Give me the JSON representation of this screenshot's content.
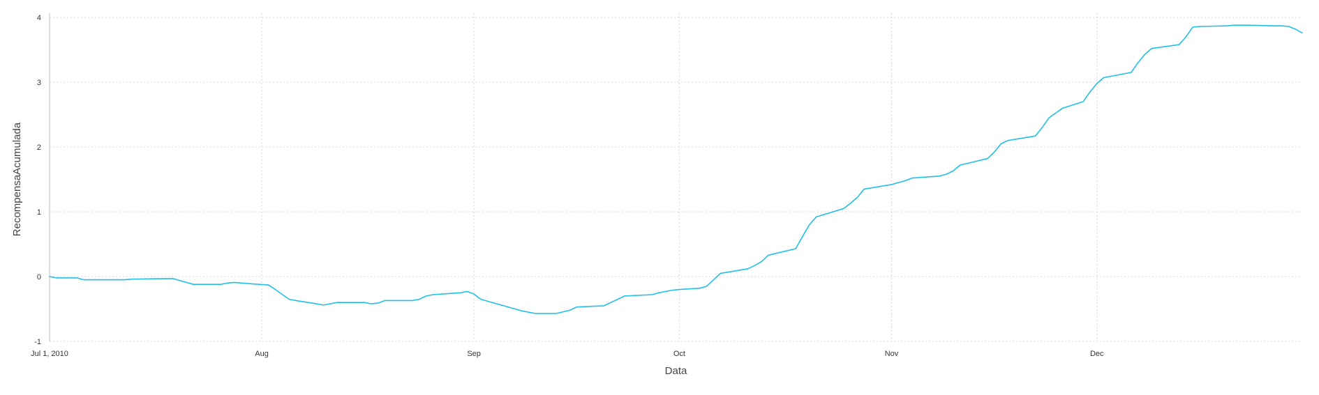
{
  "chart_data": {
    "type": "line",
    "xlabel": "Data",
    "ylabel": "RecompensaAcumulada",
    "ylim": [
      -1,
      4
    ],
    "xlim": [
      "2010-07-01",
      "2010-12-31"
    ],
    "grid": true,
    "color": "#1fbfe8",
    "yticks": [
      {
        "value": 4,
        "label": "4"
      },
      {
        "value": 3,
        "label": "3"
      },
      {
        "value": 2,
        "label": "2"
      },
      {
        "value": 1,
        "label": "1"
      },
      {
        "value": 0,
        "label": "0"
      },
      {
        "value": -1,
        "label": "-1"
      }
    ],
    "xticks": [
      {
        "value": "2010-07-01",
        "label": "Jul 1, 2010"
      },
      {
        "value": "2010-08-01",
        "label": "Aug"
      },
      {
        "value": "2010-09-01",
        "label": "Sep"
      },
      {
        "value": "2010-10-01",
        "label": "Oct"
      },
      {
        "value": "2010-11-01",
        "label": "Nov"
      },
      {
        "value": "2010-12-01",
        "label": "Dec"
      }
    ],
    "x": [
      "2010-07-01",
      "2010-07-02",
      "2010-07-05",
      "2010-07-06",
      "2010-07-12",
      "2010-07-13",
      "2010-07-19",
      "2010-07-20",
      "2010-07-22",
      "2010-07-23",
      "2010-07-26",
      "2010-07-27",
      "2010-07-28",
      "2010-07-29",
      "2010-08-02",
      "2010-08-03",
      "2010-08-05",
      "2010-08-06",
      "2010-08-09",
      "2010-08-10",
      "2010-08-11",
      "2010-08-12",
      "2010-08-16",
      "2010-08-17",
      "2010-08-18",
      "2010-08-19",
      "2010-08-23",
      "2010-08-24",
      "2010-08-25",
      "2010-08-26",
      "2010-08-30",
      "2010-08-31",
      "2010-09-01",
      "2010-09-02",
      "2010-09-07",
      "2010-09-08",
      "2010-09-10",
      "2010-09-13",
      "2010-09-15",
      "2010-09-16",
      "2010-09-20",
      "2010-09-21",
      "2010-09-22",
      "2010-09-23",
      "2010-09-27",
      "2010-09-28",
      "2010-09-29",
      "2010-09-30",
      "2010-10-01",
      "2010-10-04",
      "2010-10-05",
      "2010-10-06",
      "2010-10-07",
      "2010-10-11",
      "2010-10-12",
      "2010-10-13",
      "2010-10-14",
      "2010-10-18",
      "2010-10-19",
      "2010-10-20",
      "2010-10-21",
      "2010-10-25",
      "2010-10-26",
      "2010-10-27",
      "2010-10-28",
      "2010-11-01",
      "2010-11-02",
      "2010-11-03",
      "2010-11-04",
      "2010-11-08",
      "2010-11-09",
      "2010-11-10",
      "2010-11-11",
      "2010-11-15",
      "2010-11-16",
      "2010-11-17",
      "2010-11-18",
      "2010-11-22",
      "2010-11-23",
      "2010-11-24",
      "2010-11-26",
      "2010-11-29",
      "2010-11-30",
      "2010-12-01",
      "2010-12-02",
      "2010-12-06",
      "2010-12-07",
      "2010-12-08",
      "2010-12-09",
      "2010-12-13",
      "2010-12-14",
      "2010-12-15",
      "2010-12-16",
      "2010-12-20",
      "2010-12-21",
      "2010-12-22",
      "2010-12-23",
      "2010-12-27",
      "2010-12-28",
      "2010-12-29",
      "2010-12-30",
      "2010-12-31"
    ],
    "y": [
      0.0,
      -0.02,
      -0.02,
      -0.05,
      -0.05,
      -0.04,
      -0.03,
      -0.06,
      -0.12,
      -0.12,
      -0.12,
      -0.1,
      -0.09,
      -0.1,
      -0.13,
      -0.2,
      -0.35,
      -0.37,
      -0.42,
      -0.44,
      -0.42,
      -0.4,
      -0.4,
      -0.42,
      -0.41,
      -0.37,
      -0.37,
      -0.35,
      -0.3,
      -0.28,
      -0.25,
      -0.23,
      -0.27,
      -0.35,
      -0.5,
      -0.53,
      -0.57,
      -0.57,
      -0.52,
      -0.47,
      -0.45,
      -0.4,
      -0.35,
      -0.3,
      -0.28,
      -0.25,
      -0.23,
      -0.21,
      -0.2,
      -0.18,
      -0.15,
      -0.05,
      0.05,
      0.12,
      0.17,
      0.23,
      0.33,
      0.43,
      0.62,
      0.8,
      0.92,
      1.05,
      1.13,
      1.22,
      1.35,
      1.42,
      1.45,
      1.48,
      1.52,
      1.55,
      1.58,
      1.63,
      1.72,
      1.82,
      1.92,
      2.05,
      2.1,
      2.17,
      2.3,
      2.45,
      2.6,
      2.7,
      2.85,
      2.98,
      3.07,
      3.15,
      3.3,
      3.43,
      3.52,
      3.58,
      3.7,
      3.85,
      3.86,
      3.87,
      3.88,
      3.88,
      3.88,
      3.87,
      3.87,
      3.86,
      3.82,
      3.76
    ]
  }
}
